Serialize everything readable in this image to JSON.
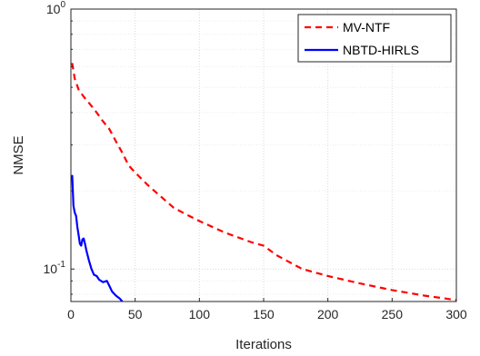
{
  "chart_data": {
    "type": "line",
    "xlabel": "Iterations",
    "ylabel": "NMSE",
    "xlim": [
      0,
      300
    ],
    "ylim": [
      0.075,
      1
    ],
    "yscale": "log",
    "grid": true,
    "legend_position": "top-right",
    "x_ticks": [
      0,
      50,
      100,
      150,
      200,
      250,
      300
    ],
    "y_tick_labels": [
      {
        "value": 1,
        "base": "10",
        "exp": "0"
      },
      {
        "value": 0.1,
        "base": "10",
        "exp": "-1"
      }
    ],
    "series": [
      {
        "name": "MV-NTF",
        "color": "#ff0000",
        "style": "dashed",
        "x": [
          1,
          3,
          6,
          10,
          15,
          20,
          25,
          30,
          35,
          40,
          45,
          50,
          60,
          70,
          80,
          90,
          100,
          120,
          140,
          150,
          160,
          180,
          200,
          225,
          250,
          275,
          300
        ],
        "y": [
          0.62,
          0.54,
          0.49,
          0.46,
          0.43,
          0.4,
          0.37,
          0.345,
          0.31,
          0.28,
          0.25,
          0.235,
          0.21,
          0.19,
          0.172,
          0.162,
          0.153,
          0.138,
          0.127,
          0.123,
          0.113,
          0.1,
          0.094,
          0.088,
          0.083,
          0.079,
          0.076
        ]
      },
      {
        "name": "NBTD-HIRLS",
        "color": "#0000ff",
        "style": "solid",
        "x": [
          1,
          2,
          3,
          4,
          5,
          6,
          7,
          8,
          9,
          10,
          11,
          12,
          14,
          16,
          18,
          20,
          22,
          25,
          28,
          30,
          32,
          35,
          38,
          40
        ],
        "y": [
          0.23,
          0.175,
          0.165,
          0.16,
          0.145,
          0.135,
          0.125,
          0.123,
          0.13,
          0.131,
          0.125,
          0.118,
          0.108,
          0.1,
          0.095,
          0.094,
          0.091,
          0.089,
          0.09,
          0.086,
          0.082,
          0.079,
          0.077,
          0.075
        ]
      }
    ]
  }
}
